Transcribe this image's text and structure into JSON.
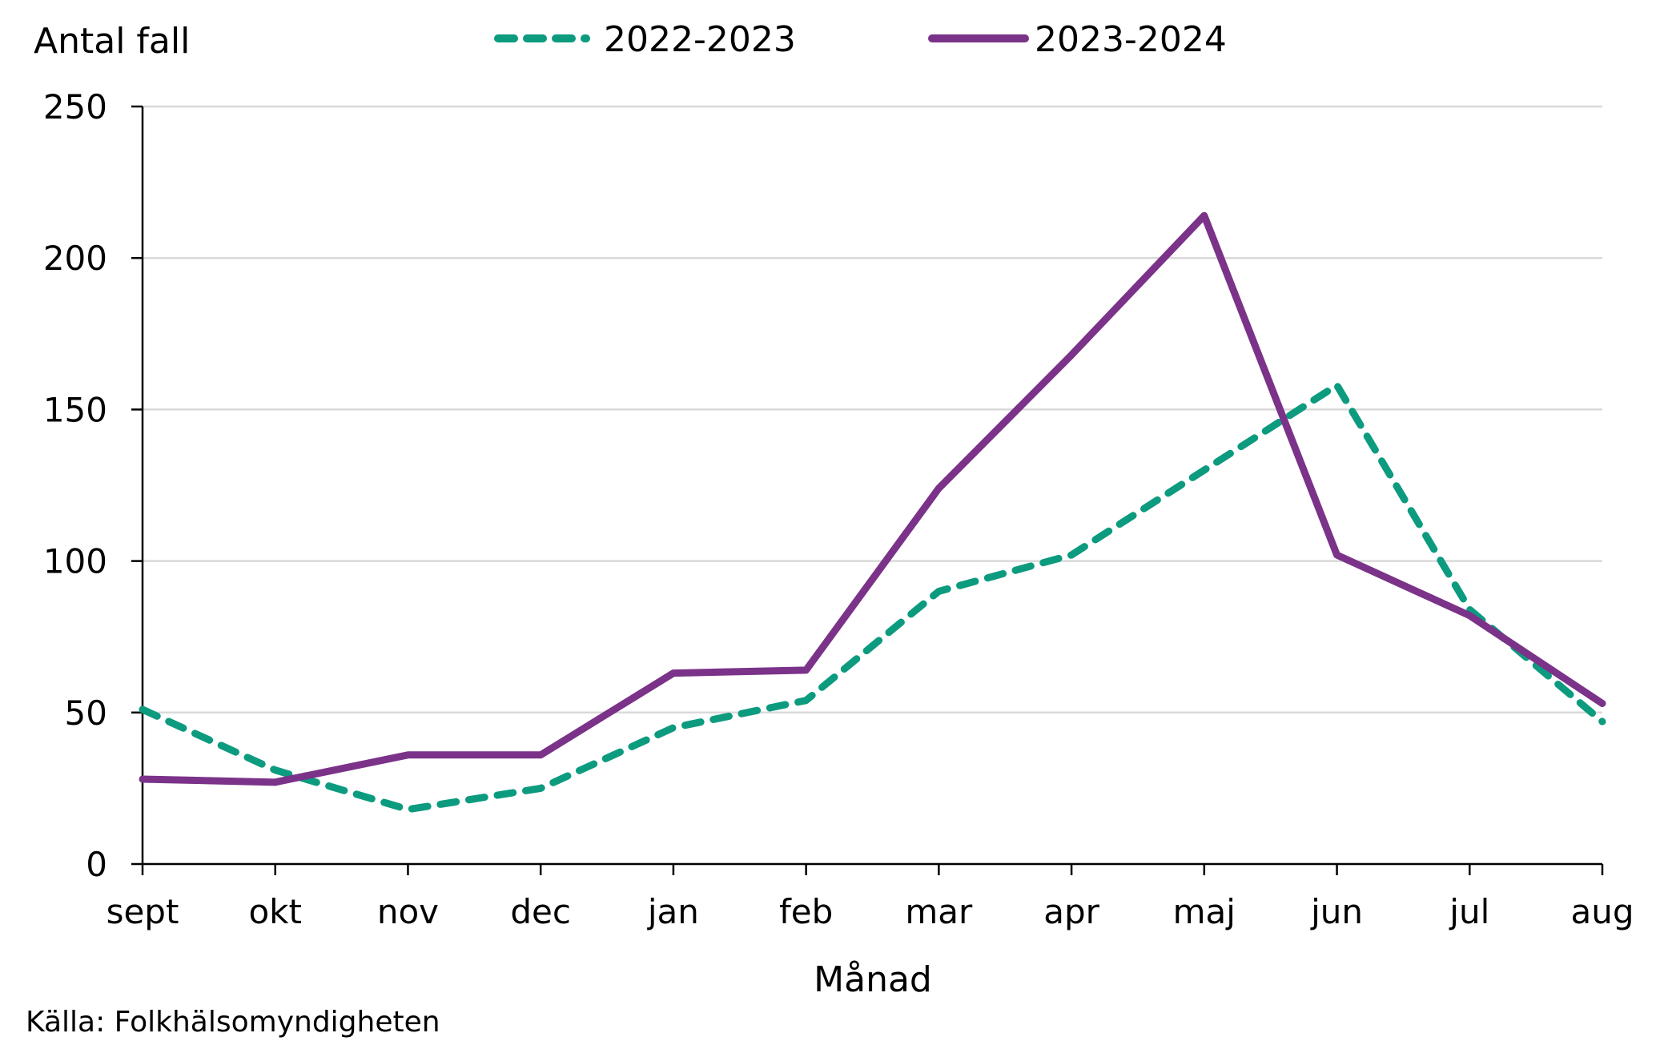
{
  "chart_data": {
    "type": "line",
    "title": "",
    "ylabel": "Antal fall",
    "xlabel": "Månad",
    "source": "Källa: Folkhälsomyndigheten",
    "categories": [
      "sept",
      "okt",
      "nov",
      "dec",
      "jan",
      "feb",
      "mar",
      "apr",
      "maj",
      "jun",
      "jul",
      "aug"
    ],
    "ylim": [
      0,
      250
    ],
    "yticks": [
      0,
      50,
      100,
      150,
      200,
      250
    ],
    "grid": true,
    "legend_position": "top-center",
    "series": [
      {
        "name": "2022-2023",
        "style": "dashed",
        "color": "#0c9b7f",
        "values": [
          51,
          31,
          18,
          25,
          45,
          54,
          90,
          102,
          130,
          158,
          84,
          47
        ]
      },
      {
        "name": "2023-2024",
        "style": "solid",
        "color": "#7b3289",
        "values": [
          28,
          27,
          36,
          36,
          63,
          64,
          124,
          168,
          214,
          102,
          82,
          53
        ]
      }
    ]
  }
}
